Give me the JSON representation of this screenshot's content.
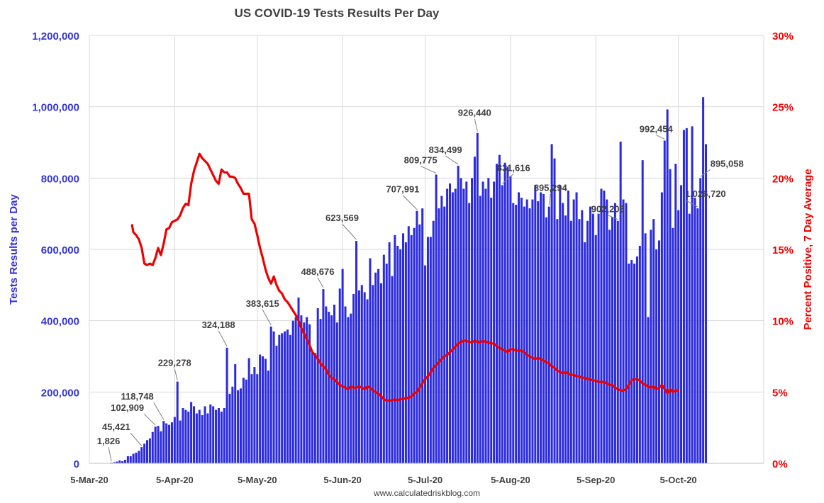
{
  "chart_data": {
    "type": "bar",
    "title": "US COVID-19 Tests Results Per Day",
    "ylabel": "Tests Results per Day",
    "y2label": "Percent Positive, 7 Day Average",
    "source": "www.calculatedriskblog.com",
    "ylim": [
      0,
      1200000
    ],
    "y2lim": [
      0,
      30
    ],
    "y_ticks": [
      "0",
      "200,000",
      "400,000",
      "600,000",
      "800,000",
      "1,000,000",
      "1,200,000"
    ],
    "y2_ticks": [
      "0%",
      "5%",
      "10%",
      "15%",
      "20%",
      "25%",
      "30%"
    ],
    "x_ticks": [
      {
        "label": "5-Mar-20",
        "day": 0
      },
      {
        "label": "5-Apr-20",
        "day": 31
      },
      {
        "label": "5-May-20",
        "day": 61
      },
      {
        "label": "5-Jun-20",
        "day": 92
      },
      {
        "label": "5-Jul-20",
        "day": 122
      },
      {
        "label": "5-Aug-20",
        "day": 153
      },
      {
        "label": "5-Sep-20",
        "day": 184
      },
      {
        "label": "5-Oct-20",
        "day": 214
      }
    ],
    "x_range_days": [
      0,
      245
    ],
    "grid": true,
    "series": [
      {
        "name": "Tests Results per Day",
        "type": "bar",
        "color": "#2b2bdd",
        "start_day": 8,
        "values": [
          1826,
          3000,
          5000,
          8000,
          6000,
          10000,
          20000,
          20000,
          27000,
          30000,
          35000,
          45421,
          55000,
          65000,
          70000,
          88000,
          102909,
          105000,
          90000,
          118748,
          112000,
          108000,
          115000,
          130000,
          229278,
          120000,
          155000,
          150000,
          145000,
          172000,
          160000,
          140000,
          150000,
          135000,
          160000,
          140000,
          165000,
          160000,
          150000,
          155000,
          145000,
          155000,
          324188,
          195000,
          215000,
          278000,
          205000,
          210000,
          240000,
          235000,
          295000,
          250000,
          270000,
          250000,
          305000,
          300000,
          293000,
          260000,
          383615,
          370000,
          330000,
          360000,
          365000,
          370000,
          375000,
          360000,
          400000,
          410000,
          465000,
          415000,
          395000,
          410000,
          390000,
          310000,
          310000,
          435000,
          405000,
          488676,
          440000,
          425000,
          415000,
          445000,
          395000,
          490000,
          545000,
          440000,
          410000,
          420000,
          475000,
          623569,
          485000,
          500000,
          480000,
          460000,
          575000,
          500000,
          535000,
          545000,
          505000,
          585000,
          560000,
          620000,
          525000,
          640000,
          610000,
          600000,
          645000,
          620000,
          665000,
          640000,
          660000,
          707991,
          670000,
          715000,
          555000,
          635000,
          635000,
          680000,
          809775,
          715000,
          750000,
          720000,
          770000,
          785000,
          760000,
          770000,
          834499,
          800000,
          770000,
          790000,
          730000,
          800000,
          860000,
          926440,
          750000,
          790000,
          770000,
          800000,
          745000,
          790000,
          840000,
          865000,
          780000,
          843000,
          831616,
          805000,
          730000,
          725000,
          760000,
          745000,
          720000,
          740000,
          715000,
          740000,
          780000,
          735000,
          760000,
          755000,
          690000,
          720000,
          895294,
          855000,
          685000,
          780000,
          730000,
          695000,
          765000,
          680000,
          740000,
          760000,
          685000,
          710000,
          620000,
          680000,
          720000,
          700000,
          640000,
          700000,
          770000,
          765000,
          740000,
          655000,
          690000,
          730000,
          680000,
          902203,
          740000,
          730000,
          560000,
          570000,
          560000,
          580000,
          610000,
          850000,
          645000,
          410000,
          655000,
          685000,
          600000,
          625000,
          760000,
          905000,
          992454,
          825000,
          660000,
          840000,
          710000,
          780000,
          935000,
          940000,
          700000,
          945000,
          745000,
          715000,
          800000,
          1026720,
          895058
        ],
        "annotations": [
          {
            "label": "1,826",
            "index": 0
          },
          {
            "label": "45,421",
            "index": 11
          },
          {
            "label": "102,909",
            "index": 16
          },
          {
            "label": "118,748",
            "index": 19
          },
          {
            "label": "229,278",
            "index": 24
          },
          {
            "label": "324,188",
            "index": 42
          },
          {
            "label": "383,615",
            "index": 58
          },
          {
            "label": "488,676",
            "index": 77
          },
          {
            "label": "623,569",
            "index": 89
          },
          {
            "label": "707,991",
            "index": 111
          },
          {
            "label": "809,775",
            "index": 118
          },
          {
            "label": "834,499",
            "index": 126
          },
          {
            "label": "926,440",
            "index": 133
          },
          {
            "label": "831,616",
            "index": 142
          },
          {
            "label": "895,294",
            "index": 159
          },
          {
            "label": "902,203",
            "index": 184
          },
          {
            "label": "992,454",
            "index": 201
          },
          {
            "label": "1,026,720",
            "index": 213
          },
          {
            "label": "895,058",
            "index": 214
          }
        ]
      },
      {
        "name": "Percent Positive, 7 Day Average",
        "type": "line",
        "axis": "right",
        "color": "#ee0000",
        "points": [
          [
            15.5,
            16.7
          ],
          [
            16,
            16.2
          ],
          [
            17,
            16.0
          ],
          [
            18,
            15.7
          ],
          [
            19,
            15.1
          ],
          [
            20,
            14.0
          ],
          [
            21,
            13.9
          ],
          [
            22,
            14.0
          ],
          [
            23,
            13.9
          ],
          [
            24,
            14.4
          ],
          [
            25,
            15.1
          ],
          [
            26,
            14.6
          ],
          [
            27,
            15.4
          ],
          [
            28,
            16.4
          ],
          [
            29,
            16.5
          ],
          [
            30,
            16.9
          ],
          [
            31,
            17.0
          ],
          [
            32,
            17.1
          ],
          [
            33,
            17.4
          ],
          [
            34,
            17.9
          ],
          [
            35,
            18.2
          ],
          [
            36,
            18.1
          ],
          [
            37,
            19.6
          ],
          [
            38,
            20.5
          ],
          [
            39,
            21.1
          ],
          [
            40,
            21.7
          ],
          [
            41,
            21.4
          ],
          [
            42,
            21.2
          ],
          [
            43,
            21.0
          ],
          [
            44,
            20.6
          ],
          [
            45,
            20.2
          ],
          [
            46,
            19.8
          ],
          [
            47,
            19.6
          ],
          [
            48,
            20.6
          ],
          [
            49,
            20.4
          ],
          [
            50,
            20.4
          ],
          [
            51,
            20.1
          ],
          [
            52,
            20.1
          ],
          [
            53,
            20.0
          ],
          [
            54,
            19.6
          ],
          [
            55,
            19.3
          ],
          [
            56,
            18.9
          ],
          [
            57,
            18.9
          ],
          [
            58,
            18.9
          ],
          [
            59,
            17.1
          ],
          [
            60,
            16.8
          ],
          [
            61,
            16.0
          ],
          [
            62,
            15.1
          ],
          [
            63,
            14.4
          ],
          [
            64,
            13.6
          ],
          [
            65,
            13.0
          ],
          [
            66,
            12.6
          ],
          [
            67,
            13.1
          ],
          [
            68,
            12.5
          ],
          [
            69,
            12.1
          ],
          [
            70,
            11.9
          ],
          [
            71,
            11.5
          ],
          [
            72,
            11.3
          ],
          [
            73,
            11.0
          ],
          [
            74,
            10.7
          ],
          [
            75,
            10.4
          ],
          [
            76,
            10.0
          ],
          [
            77,
            9.5
          ],
          [
            78,
            9.1
          ],
          [
            79,
            8.7
          ],
          [
            80,
            8.3
          ],
          [
            81,
            7.8
          ],
          [
            82,
            7.6
          ],
          [
            83,
            7.3
          ],
          [
            84,
            7.0
          ],
          [
            85,
            6.8
          ],
          [
            86,
            6.6
          ],
          [
            87,
            6.2
          ],
          [
            88,
            6.0
          ],
          [
            89,
            5.9
          ],
          [
            90,
            5.7
          ],
          [
            91,
            5.5
          ],
          [
            92,
            5.4
          ],
          [
            93,
            5.3
          ],
          [
            94,
            5.2
          ],
          [
            95,
            5.4
          ],
          [
            96,
            5.3
          ],
          [
            97,
            5.3
          ],
          [
            98,
            5.4
          ],
          [
            99,
            5.3
          ],
          [
            100,
            5.2
          ],
          [
            101,
            5.4
          ],
          [
            102,
            5.3
          ],
          [
            103,
            5.1
          ],
          [
            104,
            5.0
          ],
          [
            105,
            4.9
          ],
          [
            106,
            4.7
          ],
          [
            107,
            4.5
          ],
          [
            108,
            4.4
          ],
          [
            109,
            4.4
          ],
          [
            110,
            4.4
          ],
          [
            111,
            4.5
          ],
          [
            112,
            4.4
          ],
          [
            113,
            4.5
          ],
          [
            114,
            4.5
          ],
          [
            115,
            4.6
          ],
          [
            116,
            4.6
          ],
          [
            117,
            4.7
          ],
          [
            118,
            4.9
          ],
          [
            119,
            5.0
          ],
          [
            120,
            5.3
          ],
          [
            121,
            5.6
          ],
          [
            122,
            5.9
          ],
          [
            123,
            6.1
          ],
          [
            124,
            6.4
          ],
          [
            125,
            6.7
          ],
          [
            126,
            6.9
          ],
          [
            127,
            7.1
          ],
          [
            128,
            7.3
          ],
          [
            129,
            7.5
          ],
          [
            130,
            7.6
          ],
          [
            131,
            7.8
          ],
          [
            132,
            8.0
          ],
          [
            133,
            8.2
          ],
          [
            134,
            8.4
          ],
          [
            135,
            8.5
          ],
          [
            136,
            8.6
          ],
          [
            137,
            8.6
          ],
          [
            138,
            8.5
          ],
          [
            139,
            8.5
          ],
          [
            140,
            8.6
          ],
          [
            141,
            8.5
          ],
          [
            142,
            8.5
          ],
          [
            143,
            8.6
          ],
          [
            144,
            8.5
          ],
          [
            145,
            8.5
          ],
          [
            146,
            8.4
          ],
          [
            147,
            8.4
          ],
          [
            148,
            8.2
          ],
          [
            149,
            8.1
          ],
          [
            150,
            8.0
          ],
          [
            151,
            7.9
          ],
          [
            152,
            7.8
          ],
          [
            153,
            8.0
          ],
          [
            154,
            8.0
          ],
          [
            155,
            7.9
          ],
          [
            156,
            7.9
          ],
          [
            157,
            7.9
          ],
          [
            158,
            7.8
          ],
          [
            159,
            7.6
          ],
          [
            160,
            7.5
          ],
          [
            161,
            7.4
          ],
          [
            162,
            7.3
          ],
          [
            163,
            7.4
          ],
          [
            164,
            7.3
          ],
          [
            165,
            7.2
          ],
          [
            166,
            7.1
          ],
          [
            167,
            7.0
          ],
          [
            168,
            6.8
          ],
          [
            169,
            6.7
          ],
          [
            170,
            6.5
          ],
          [
            171,
            6.4
          ],
          [
            172,
            6.3
          ],
          [
            173,
            6.4
          ],
          [
            174,
            6.3
          ],
          [
            175,
            6.2
          ],
          [
            176,
            6.2
          ],
          [
            177,
            6.1
          ],
          [
            178,
            6.1
          ],
          [
            179,
            6.0
          ],
          [
            180,
            6.0
          ],
          [
            181,
            5.9
          ],
          [
            182,
            5.9
          ],
          [
            183,
            5.8
          ],
          [
            184,
            5.8
          ],
          [
            185,
            5.7
          ],
          [
            186,
            5.7
          ],
          [
            187,
            5.7
          ],
          [
            188,
            5.6
          ],
          [
            189,
            5.5
          ],
          [
            190,
            5.5
          ],
          [
            191,
            5.3
          ],
          [
            192,
            5.2
          ],
          [
            193,
            5.1
          ],
          [
            194,
            5.1
          ],
          [
            195,
            5.2
          ],
          [
            196,
            5.5
          ],
          [
            197,
            5.8
          ],
          [
            198,
            5.9
          ],
          [
            199,
            5.9
          ],
          [
            200,
            5.8
          ],
          [
            201,
            5.6
          ],
          [
            202,
            5.5
          ],
          [
            203,
            5.4
          ],
          [
            204,
            5.3
          ],
          [
            205,
            5.4
          ],
          [
            206,
            5.2
          ],
          [
            207,
            5.3
          ],
          [
            208,
            5.5
          ],
          [
            209,
            5.2
          ],
          [
            210,
            4.9
          ],
          [
            211,
            5.2
          ],
          [
            212,
            5.0
          ],
          [
            213,
            5.1
          ],
          [
            214,
            5.1
          ]
        ]
      }
    ]
  }
}
